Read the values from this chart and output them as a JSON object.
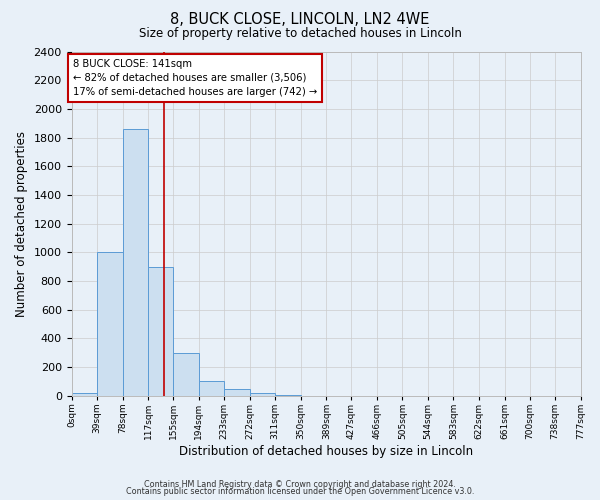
{
  "title": "8, BUCK CLOSE, LINCOLN, LN2 4WE",
  "subtitle": "Size of property relative to detached houses in Lincoln",
  "xlabel": "Distribution of detached houses by size in Lincoln",
  "ylabel": "Number of detached properties",
  "bin_edges": [
    0,
    39,
    78,
    117,
    155,
    194,
    233,
    272,
    311,
    350,
    389,
    427,
    466,
    505,
    544,
    583,
    622,
    661,
    700,
    738,
    777
  ],
  "bin_counts": [
    20,
    1005,
    1860,
    900,
    300,
    100,
    45,
    20,
    5,
    0,
    0,
    0,
    0,
    0,
    0,
    0,
    0,
    0,
    0,
    0
  ],
  "bar_color": "#ccdff0",
  "bar_edge_color": "#5b9bd5",
  "property_size": 141,
  "property_line_color": "#c00000",
  "annotation_line1": "8 BUCK CLOSE: 141sqm",
  "annotation_line2": "← 82% of detached houses are smaller (3,506)",
  "annotation_line3": "17% of semi-detached houses are larger (742) →",
  "annotation_box_color": "#ffffff",
  "annotation_box_edge_color": "#c00000",
  "ylim": [
    0,
    2400
  ],
  "yticks": [
    0,
    200,
    400,
    600,
    800,
    1000,
    1200,
    1400,
    1600,
    1800,
    2000,
    2200,
    2400
  ],
  "grid_color": "#cccccc",
  "background_color": "#e8f0f8",
  "tick_labels": [
    "0sqm",
    "39sqm",
    "78sqm",
    "117sqm",
    "155sqm",
    "194sqm",
    "233sqm",
    "272sqm",
    "311sqm",
    "350sqm",
    "389sqm",
    "427sqm",
    "466sqm",
    "505sqm",
    "544sqm",
    "583sqm",
    "622sqm",
    "661sqm",
    "700sqm",
    "738sqm",
    "777sqm"
  ],
  "footer_line1": "Contains HM Land Registry data © Crown copyright and database right 2024.",
  "footer_line2": "Contains public sector information licensed under the Open Government Licence v3.0."
}
